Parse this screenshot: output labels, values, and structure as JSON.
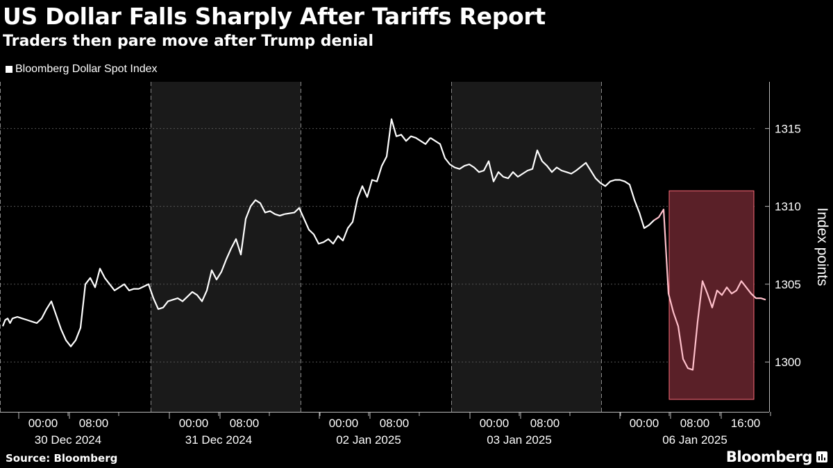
{
  "header": {
    "title": "US Dollar Falls Sharply After Tariffs Report",
    "subtitle": "Traders then pare move after Trump denial"
  },
  "legend": {
    "label": "Bloomberg Dollar Spot Index"
  },
  "footer": {
    "source": "Source: Bloomberg",
    "brand": "Bloomberg"
  },
  "colors": {
    "background": "#000000",
    "line": "#ffffff",
    "highlight_line": "#ffc0cb",
    "highlight_fill": "#5a2028",
    "highlight_stroke": "#ff6b7a",
    "band_fill": "#1a1a1a",
    "grid": "#555555"
  },
  "chart_data": {
    "type": "line",
    "series_name": "Bloomberg Dollar Spot Index",
    "ylabel": "Index points",
    "ylim": [
      1296.8,
      1318.0
    ],
    "yticks": [
      1300,
      1305,
      1310,
      1315
    ],
    "grid": "horizontal dotted",
    "legend_position": "top-left",
    "sessions": [
      "30 Dec 2024",
      "31 Dec 2024",
      "02 Jan 2025",
      "03 Jan 2025",
      "06 Jan 2025"
    ],
    "shaded_sessions": [
      "31 Dec 2024",
      "03 Jan 2025"
    ],
    "time_tick_labels": [
      "00:00",
      "08:00",
      "00:00",
      "08:00",
      "00:00",
      "08:00",
      "00:00",
      "08:00",
      "00:00",
      "08:00",
      "16:00"
    ],
    "highlight": {
      "session": "06 Jan 2025",
      "from": "04:00",
      "to": "19:00",
      "y_range": [
        1297.6,
        1311.0
      ]
    },
    "points": [
      [
        0,
        1302.3
      ],
      [
        0.5,
        1302.7
      ],
      [
        1,
        1302.8
      ],
      [
        1.5,
        1302.5
      ],
      [
        2,
        1302.8
      ],
      [
        3,
        1302.9
      ],
      [
        4,
        1302.8
      ],
      [
        5,
        1302.7
      ],
      [
        6,
        1302.6
      ],
      [
        7,
        1302.5
      ],
      [
        8,
        1302.8
      ],
      [
        9,
        1303.4
      ],
      [
        10,
        1303.9
      ],
      [
        11,
        1303.0
      ],
      [
        12,
        1302.1
      ],
      [
        13,
        1301.4
      ],
      [
        14,
        1301.0
      ],
      [
        15,
        1301.4
      ],
      [
        16,
        1302.2
      ],
      [
        17,
        1305.0
      ],
      [
        18,
        1305.4
      ],
      [
        19,
        1304.8
      ],
      [
        20,
        1306.0
      ],
      [
        21,
        1305.4
      ],
      [
        22,
        1305.0
      ],
      [
        23,
        1304.6
      ],
      [
        24,
        1304.8
      ],
      [
        25,
        1305.0
      ],
      [
        26,
        1304.6
      ],
      [
        27,
        1304.7
      ],
      [
        28,
        1304.7
      ],
      [
        30,
        1305.0
      ],
      [
        31,
        1304.1
      ],
      [
        32,
        1303.4
      ],
      [
        33,
        1303.5
      ],
      [
        34,
        1303.9
      ],
      [
        35,
        1304.0
      ],
      [
        36,
        1304.1
      ],
      [
        37,
        1303.9
      ],
      [
        38,
        1304.2
      ],
      [
        39,
        1304.5
      ],
      [
        40,
        1304.3
      ],
      [
        41,
        1303.9
      ],
      [
        42,
        1304.6
      ],
      [
        43,
        1305.9
      ],
      [
        44,
        1305.3
      ],
      [
        45,
        1305.8
      ],
      [
        46,
        1306.6
      ],
      [
        47,
        1307.3
      ],
      [
        48,
        1307.9
      ],
      [
        49,
        1306.9
      ],
      [
        50,
        1309.2
      ],
      [
        51,
        1310.0
      ],
      [
        52,
        1310.4
      ],
      [
        53,
        1310.2
      ],
      [
        54,
        1309.6
      ],
      [
        55,
        1309.7
      ],
      [
        56,
        1309.5
      ],
      [
        57,
        1309.4
      ],
      [
        58,
        1309.5
      ],
      [
        60,
        1309.6
      ],
      [
        61,
        1309.9
      ],
      [
        62,
        1309.2
      ],
      [
        63,
        1308.5
      ],
      [
        64,
        1308.2
      ],
      [
        65,
        1307.6
      ],
      [
        66,
        1307.7
      ],
      [
        67,
        1307.9
      ],
      [
        68,
        1307.6
      ],
      [
        69,
        1308.1
      ],
      [
        70,
        1307.8
      ],
      [
        71,
        1308.6
      ],
      [
        72,
        1309.0
      ],
      [
        73,
        1310.5
      ],
      [
        74,
        1311.3
      ],
      [
        75,
        1310.6
      ],
      [
        76,
        1311.7
      ],
      [
        77,
        1311.6
      ],
      [
        78,
        1312.6
      ],
      [
        79,
        1313.2
      ],
      [
        80,
        1315.6
      ],
      [
        81,
        1314.5
      ],
      [
        82,
        1314.6
      ],
      [
        83,
        1314.2
      ],
      [
        84,
        1314.5
      ],
      [
        85,
        1314.4
      ],
      [
        86,
        1314.2
      ],
      [
        87,
        1314.0
      ],
      [
        88,
        1314.4
      ],
      [
        90,
        1314.0
      ],
      [
        91,
        1313.1
      ],
      [
        92,
        1312.7
      ],
      [
        93,
        1312.5
      ],
      [
        94,
        1312.4
      ],
      [
        95,
        1312.6
      ],
      [
        96,
        1312.7
      ],
      [
        97,
        1312.5
      ],
      [
        98,
        1312.2
      ],
      [
        99,
        1312.3
      ],
      [
        100,
        1312.9
      ],
      [
        101,
        1311.6
      ],
      [
        102,
        1312.2
      ],
      [
        103,
        1311.9
      ],
      [
        104,
        1311.8
      ],
      [
        105,
        1312.2
      ],
      [
        106,
        1311.9
      ],
      [
        107,
        1312.1
      ],
      [
        108,
        1312.3
      ],
      [
        109,
        1312.4
      ],
      [
        110,
        1313.6
      ],
      [
        111,
        1312.9
      ],
      [
        112,
        1312.6
      ],
      [
        113,
        1312.2
      ],
      [
        114,
        1312.5
      ],
      [
        115,
        1312.3
      ],
      [
        116,
        1312.2
      ],
      [
        117,
        1312.1
      ],
      [
        118,
        1312.3
      ],
      [
        120,
        1312.8
      ],
      [
        121,
        1312.3
      ],
      [
        122,
        1311.8
      ],
      [
        123,
        1311.5
      ],
      [
        124,
        1311.3
      ],
      [
        125,
        1311.6
      ],
      [
        126,
        1311.7
      ],
      [
        127,
        1311.7
      ],
      [
        128,
        1311.6
      ],
      [
        129,
        1311.4
      ],
      [
        130,
        1310.4
      ],
      [
        131,
        1309.6
      ],
      [
        132,
        1308.6
      ],
      [
        133,
        1308.8
      ],
      [
        134,
        1309.1
      ],
      [
        135,
        1309.3
      ],
      [
        136,
        1309.8
      ],
      [
        137,
        1304.4
      ],
      [
        138,
        1303.2
      ],
      [
        139,
        1302.3
      ],
      [
        140,
        1300.2
      ],
      [
        141,
        1299.6
      ],
      [
        142,
        1299.5
      ],
      [
        143,
        1302.6
      ],
      [
        144,
        1305.2
      ],
      [
        145,
        1304.4
      ],
      [
        146,
        1303.5
      ],
      [
        147,
        1304.6
      ],
      [
        148,
        1304.3
      ],
      [
        149,
        1304.8
      ],
      [
        150,
        1304.4
      ],
      [
        151,
        1304.6
      ],
      [
        152,
        1305.2
      ],
      [
        153,
        1304.8
      ],
      [
        154,
        1304.4
      ],
      [
        155,
        1304.1
      ],
      [
        156,
        1304.1
      ],
      [
        157,
        1304.0
      ]
    ],
    "highlight_start_x": 134
  }
}
